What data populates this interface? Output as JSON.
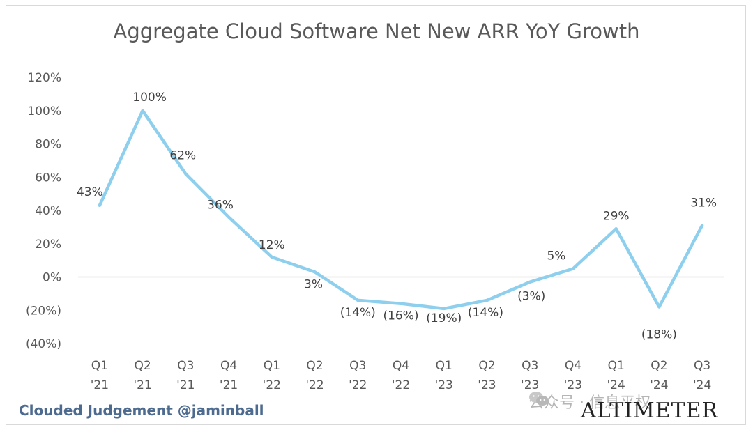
{
  "chart_data": {
    "type": "line",
    "title": "Aggregate Cloud Software Net New ARR YoY Growth",
    "xlabel": "",
    "ylabel": "",
    "ylim": [
      -40,
      120
    ],
    "yticks": [
      "(40%)",
      "(20%)",
      "0%",
      "20%",
      "40%",
      "60%",
      "80%",
      "100%",
      "120%"
    ],
    "ytick_values": [
      -40,
      -20,
      0,
      20,
      40,
      60,
      80,
      100,
      120
    ],
    "categories": [
      "Q1 '21",
      "Q2 '21",
      "Q3 '21",
      "Q4 '21",
      "Q1 '22",
      "Q2 '22",
      "Q3 '22",
      "Q4 '22",
      "Q1 '23",
      "Q2 '23",
      "Q3 '23",
      "Q4 '23",
      "Q1 '24",
      "Q2 '24",
      "Q3 '24"
    ],
    "series": [
      {
        "name": "Net New ARR YoY Growth",
        "color": "#8ecfee",
        "values": [
          43,
          100,
          62,
          36,
          12,
          3,
          -14,
          -16,
          -19,
          -14,
          -3,
          5,
          29,
          -18,
          31
        ],
        "labels": [
          "43%",
          "100%",
          "62%",
          "36%",
          "12%",
          "3%",
          "(14%)",
          "(16%)",
          "(19%)",
          "(14%)",
          "(3%)",
          "5%",
          "29%",
          "(18%)",
          "31%"
        ]
      }
    ],
    "grid": false,
    "zero_line": true
  },
  "footer": {
    "credit": "Clouded Judgement @jaminball",
    "watermark": "公众号 · 信息平权",
    "brand": "ALTIMETER"
  },
  "colors": {
    "line": "#8ecfee",
    "credit": "#4d6a8f",
    "axis_text": "#595959"
  }
}
